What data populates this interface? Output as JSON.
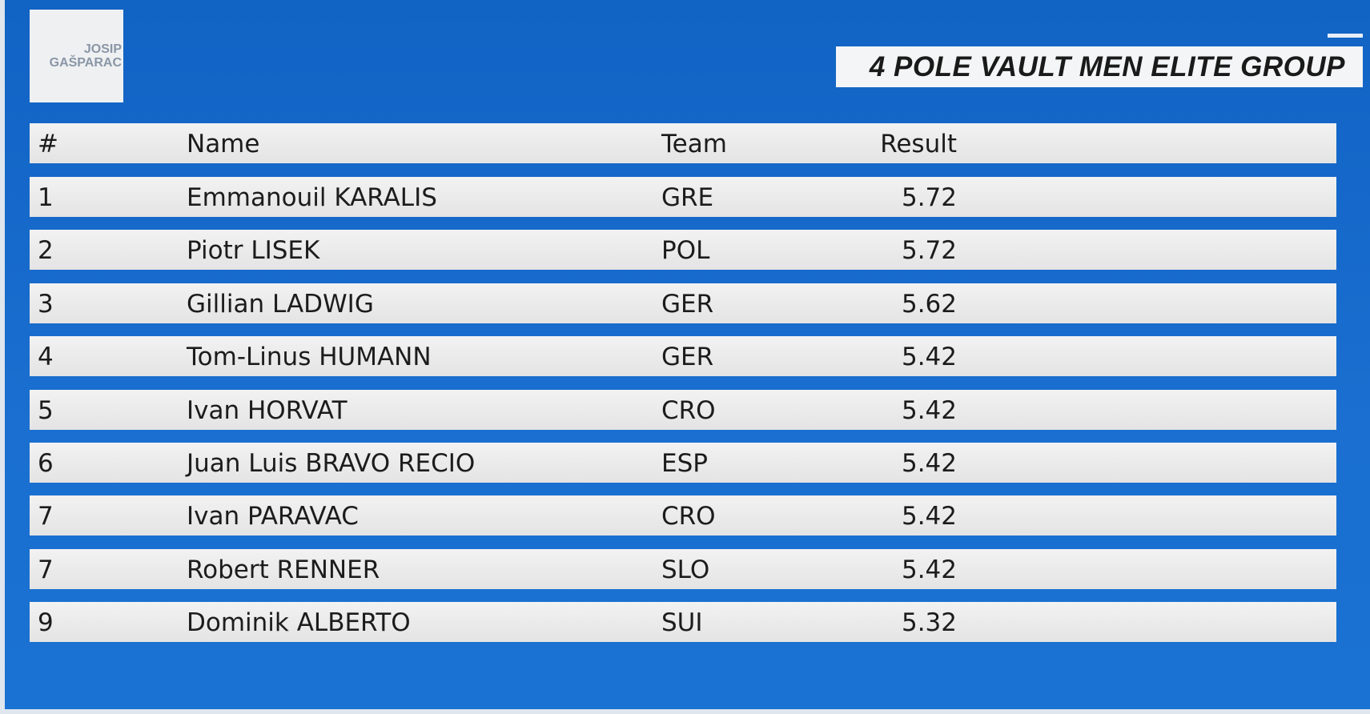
{
  "logo": {
    "lines": [
      "JOSIP",
      "GAŠPARAC"
    ]
  },
  "header": {
    "title": "4 POLE VAULT MEN ELITE GROUP"
  },
  "table": {
    "columns": [
      "#",
      "Name",
      "Team",
      "Result"
    ],
    "rows": [
      [
        "1",
        "Emmanouil KARALIS",
        "GRE",
        "5.72"
      ],
      [
        "2",
        "Piotr LISEK",
        "POL",
        "5.72"
      ],
      [
        "3",
        "Gillian LADWIG",
        "GER",
        "5.62"
      ],
      [
        "4",
        "Tom-Linus HUMANN",
        "GER",
        "5.42"
      ],
      [
        "5",
        "Ivan HORVAT",
        "CRO",
        "5.42"
      ],
      [
        "6",
        "Juan Luis BRAVO RECIO",
        "ESP",
        "5.42"
      ],
      [
        "7",
        "Ivan PARAVAC",
        "CRO",
        "5.42"
      ],
      [
        "7",
        "Robert RENNER",
        "SLO",
        "5.42"
      ],
      [
        "9",
        "Dominik ALBERTO",
        "SUI",
        "5.32"
      ]
    ]
  }
}
